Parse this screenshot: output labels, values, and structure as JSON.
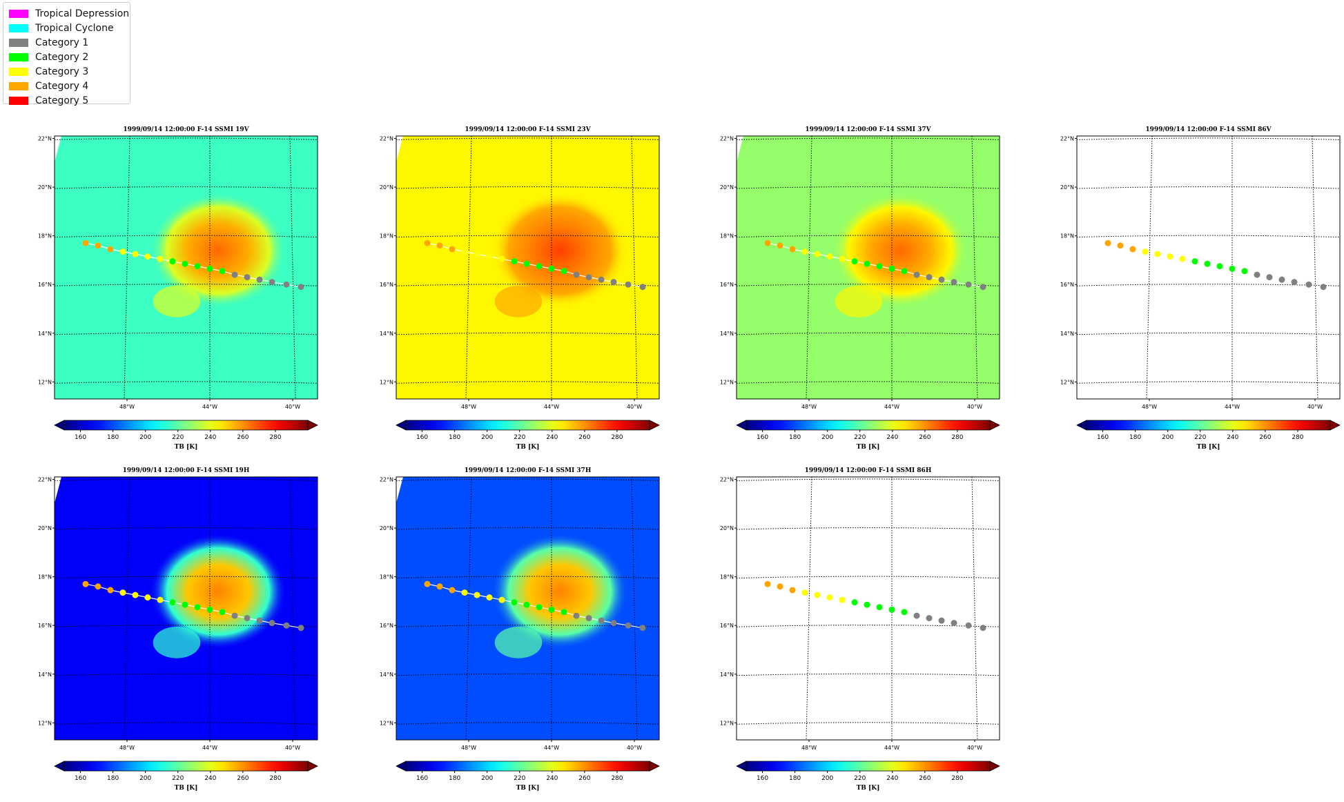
{
  "legend": {
    "items": [
      {
        "label": "Tropical Depression",
        "color": "#ff00ff"
      },
      {
        "label": "Tropical Cyclone",
        "color": "#00ffff"
      },
      {
        "label": "Category 1",
        "color": "#808080"
      },
      {
        "label": "Category 2",
        "color": "#00ff00"
      },
      {
        "label": "Category 3",
        "color": "#ffff00"
      },
      {
        "label": "Category 4",
        "color": "#ffa500"
      },
      {
        "label": "Category 5",
        "color": "#ff0000"
      }
    ]
  },
  "chart_data": [
    {
      "type": "heatmap",
      "title": "1999/09/14 12:00:00  F-14 SSMI 19V",
      "channel": "19V",
      "background_tb": 215,
      "blob_tb": 262,
      "colorbar": {
        "ticks": [
          160,
          180,
          200,
          220,
          240,
          260,
          280
        ],
        "label": "TB [K]"
      }
    },
    {
      "type": "heatmap",
      "title": "1999/09/14 12:00:00  F-14 SSMI 23V",
      "channel": "23V",
      "background_tb": 245,
      "blob_tb": 268,
      "colorbar": {
        "ticks": [
          160,
          180,
          200,
          220,
          240,
          260,
          280
        ],
        "label": "TB [K]"
      }
    },
    {
      "type": "heatmap",
      "title": "1999/09/14 12:00:00  F-14 SSMI 37V",
      "channel": "37V",
      "background_tb": 228,
      "blob_tb": 262,
      "colorbar": {
        "ticks": [
          160,
          180,
          200,
          220,
          240,
          260,
          280
        ],
        "label": "TB [K]"
      }
    },
    {
      "type": "heatmap",
      "title": "1999/09/14 12:00:00  F-14 SSMI 86V",
      "channel": "86V",
      "background_tb": null,
      "blob_tb": null,
      "colorbar": {
        "ticks": [
          160,
          180,
          200,
          220,
          240,
          260,
          280
        ],
        "label": "TB [K]"
      }
    },
    {
      "type": "heatmap",
      "title": "1999/09/14 12:00:00  F-14 SSMI 19H",
      "channel": "19H",
      "background_tb": 168,
      "blob_tb": 258,
      "colorbar": {
        "ticks": [
          160,
          180,
          200,
          220,
          240,
          260,
          280
        ],
        "label": "TB [K]"
      }
    },
    {
      "type": "heatmap",
      "title": "1999/09/14 12:00:00  F-14 SSMI 37H",
      "channel": "37H",
      "background_tb": 180,
      "blob_tb": 258,
      "colorbar": {
        "ticks": [
          160,
          180,
          200,
          220,
          240,
          260,
          280
        ],
        "label": "TB [K]"
      }
    },
    {
      "type": "heatmap",
      "title": "1999/09/14 12:00:00  F-14 SSMI 86H",
      "channel": "86H",
      "background_tb": null,
      "blob_tb": null,
      "colorbar": {
        "ticks": [
          160,
          180,
          200,
          220,
          240,
          260,
          280
        ],
        "label": "TB [K]"
      }
    }
  ],
  "map": {
    "lat_ticks": [
      "22°N",
      "20°N",
      "18°N",
      "16°N",
      "14°N",
      "12°N"
    ],
    "lon_ticks": [
      "48°W",
      "44°W",
      "40°W"
    ],
    "track": [
      {
        "lon": -50.0,
        "lat": 17.7,
        "cat": "Category 4"
      },
      {
        "lon": -49.4,
        "lat": 17.6,
        "cat": "Category 4"
      },
      {
        "lon": -48.8,
        "lat": 17.45,
        "cat": "Category 4"
      },
      {
        "lon": -48.2,
        "lat": 17.35,
        "cat": "Category 3"
      },
      {
        "lon": -47.6,
        "lat": 17.25,
        "cat": "Category 3"
      },
      {
        "lon": -47.0,
        "lat": 17.15,
        "cat": "Category 3"
      },
      {
        "lon": -46.4,
        "lat": 17.05,
        "cat": "Category 3"
      },
      {
        "lon": -45.8,
        "lat": 16.95,
        "cat": "Category 2"
      },
      {
        "lon": -45.2,
        "lat": 16.85,
        "cat": "Category 2"
      },
      {
        "lon": -44.6,
        "lat": 16.75,
        "cat": "Category 2"
      },
      {
        "lon": -44.0,
        "lat": 16.65,
        "cat": "Category 2"
      },
      {
        "lon": -43.4,
        "lat": 16.55,
        "cat": "Category 2"
      },
      {
        "lon": -42.8,
        "lat": 16.4,
        "cat": "Category 1"
      },
      {
        "lon": -42.2,
        "lat": 16.3,
        "cat": "Category 1"
      },
      {
        "lon": -41.6,
        "lat": 16.2,
        "cat": "Category 1"
      },
      {
        "lon": -41.0,
        "lat": 16.1,
        "cat": "Category 1"
      },
      {
        "lon": -40.3,
        "lat": 16.0,
        "cat": "Category 1"
      },
      {
        "lon": -39.6,
        "lat": 15.9,
        "cat": "Category 1"
      }
    ]
  }
}
